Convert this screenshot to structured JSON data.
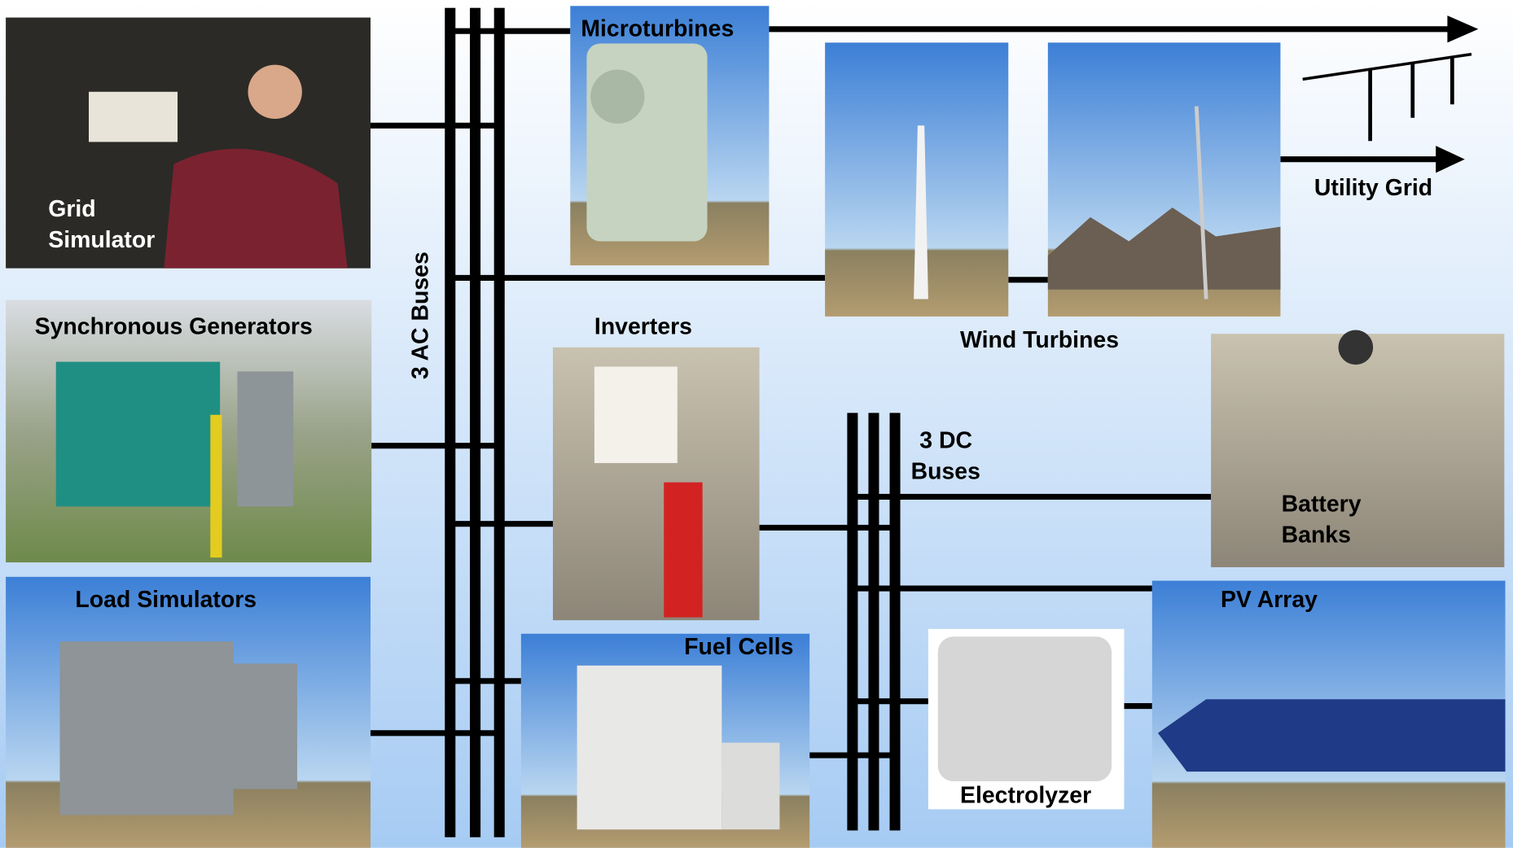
{
  "title_ac_buses": "3 AC Buses",
  "dc_buses": [
    "3 DC",
    "Buses"
  ],
  "nodes": [
    {
      "label": [
        "Grid",
        "Simulator"
      ]
    },
    {
      "label": [
        "Synchronous Generators"
      ]
    },
    {
      "label": [
        "Load Simulators"
      ]
    },
    {
      "label": [
        "Microturbines"
      ]
    },
    {
      "label": [
        "Wind Turbines"
      ]
    },
    {
      "label": [
        "Utility Grid"
      ]
    },
    {
      "label": [
        "Inverters"
      ]
    },
    {
      "label": [
        "Fuel Cells"
      ]
    },
    {
      "label": [
        "Battery",
        "Banks"
      ]
    },
    {
      "label": [
        "PV Array"
      ]
    },
    {
      "label": [
        "Electrolyzer"
      ]
    }
  ]
}
